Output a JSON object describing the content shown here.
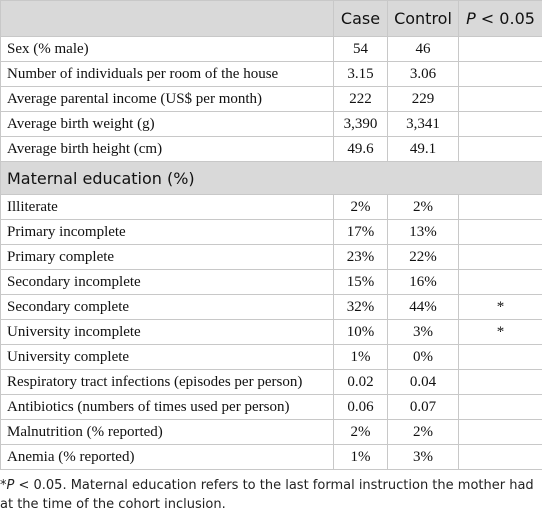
{
  "table": {
    "header": {
      "case": "Case",
      "control": "Control",
      "p": {
        "italic": "P",
        "rest": " < 0.05"
      }
    },
    "rows": [
      {
        "label": "Sex (% male)",
        "case": "54",
        "control": "46"
      },
      {
        "label": "Number of individuals per room of the house",
        "case": "3.15",
        "control": "3.06"
      },
      {
        "label": "Average parental income (US$ per month)",
        "case": "222",
        "control": "229"
      },
      {
        "label": "Average birth weight (g)",
        "case": "3,390",
        "control": "3,341"
      },
      {
        "label": "Average birth height (cm)",
        "case": "49.6",
        "control": "49.1"
      },
      {
        "section": "Maternal education (%)"
      },
      {
        "label": "Illiterate",
        "case": "2%",
        "control": "2%"
      },
      {
        "label": "Primary incomplete",
        "case": "17%",
        "control": "13%"
      },
      {
        "label": "Primary complete",
        "case": "23%",
        "control": "22%"
      },
      {
        "label": "Secondary incomplete",
        "case": "15%",
        "control": "16%"
      },
      {
        "label": "Secondary complete",
        "case": "32%",
        "control": "44%",
        "p": "*"
      },
      {
        "label": "University incomplete",
        "case": "10%",
        "control": "3%",
        "p": "*"
      },
      {
        "label": "University complete",
        "case": "1%",
        "control": "0%"
      },
      {
        "label": "Respiratory tract infections (episodes per person)",
        "case": "0.02",
        "control": "0.04"
      },
      {
        "label": "Antibiotics (numbers of times used per person)",
        "case": "0.06",
        "control": "0.07"
      },
      {
        "label": "Malnutrition (% reported)",
        "case": "2%",
        "control": "2%"
      },
      {
        "label": "Anemia (% reported)",
        "case": "1%",
        "control": "3%"
      }
    ],
    "footnote": {
      "star": "*",
      "italic": "P",
      "rest": " < 0.05. Maternal education refers to the last formal instruction the mother had at the time of the cohort inclusion."
    }
  }
}
